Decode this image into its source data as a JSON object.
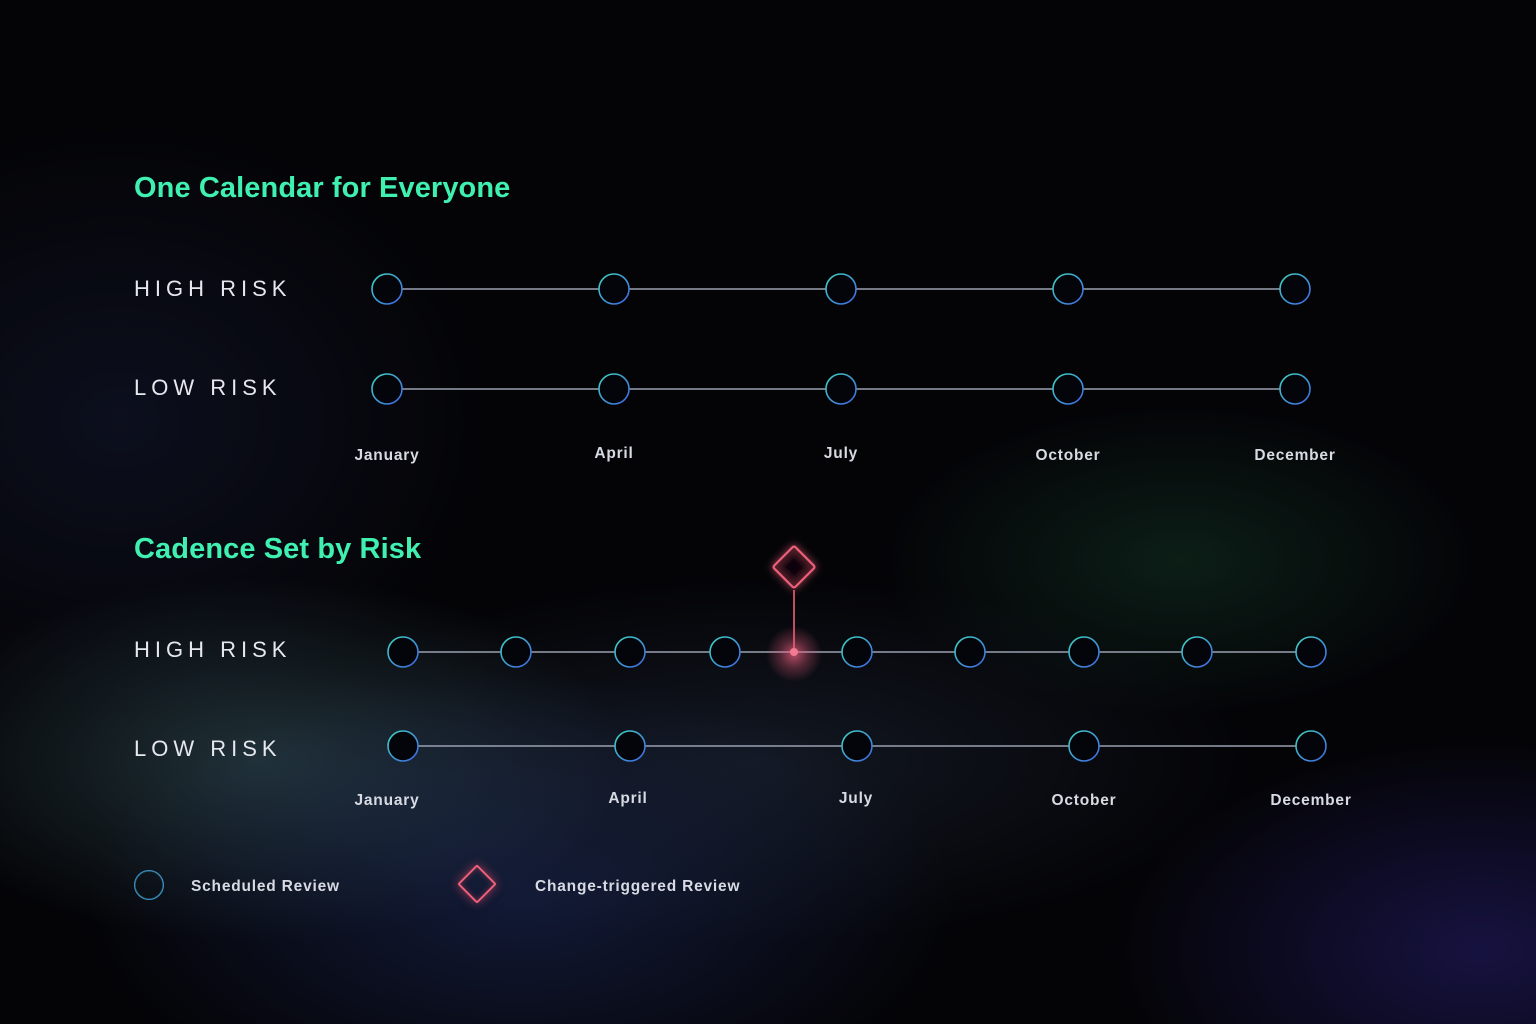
{
  "section1": {
    "title": "One Calendar for Everyone",
    "rows": [
      {
        "label": "HIGH RISK"
      },
      {
        "label": "LOW RISK"
      }
    ],
    "months": [
      "January",
      "April",
      "July",
      "October",
      "December"
    ]
  },
  "section2": {
    "title": "Cadence Set by Risk",
    "rows": [
      {
        "label": "HIGH RISK"
      },
      {
        "label": "LOW RISK"
      }
    ],
    "months": [
      "January",
      "April",
      "July",
      "October",
      "December"
    ]
  },
  "legend": {
    "scheduled": {
      "label": "Scheduled Review",
      "icon": "circle-icon"
    },
    "triggered": {
      "label": "Change-triggered Review",
      "icon": "diamond-icon"
    }
  },
  "colors": {
    "heading": "#3ff0b0",
    "line": "#9aa0b0",
    "node_stroke_a": "#3fd0c0",
    "node_stroke_b": "#3f6fe0",
    "trigger": "#f0607a"
  }
}
